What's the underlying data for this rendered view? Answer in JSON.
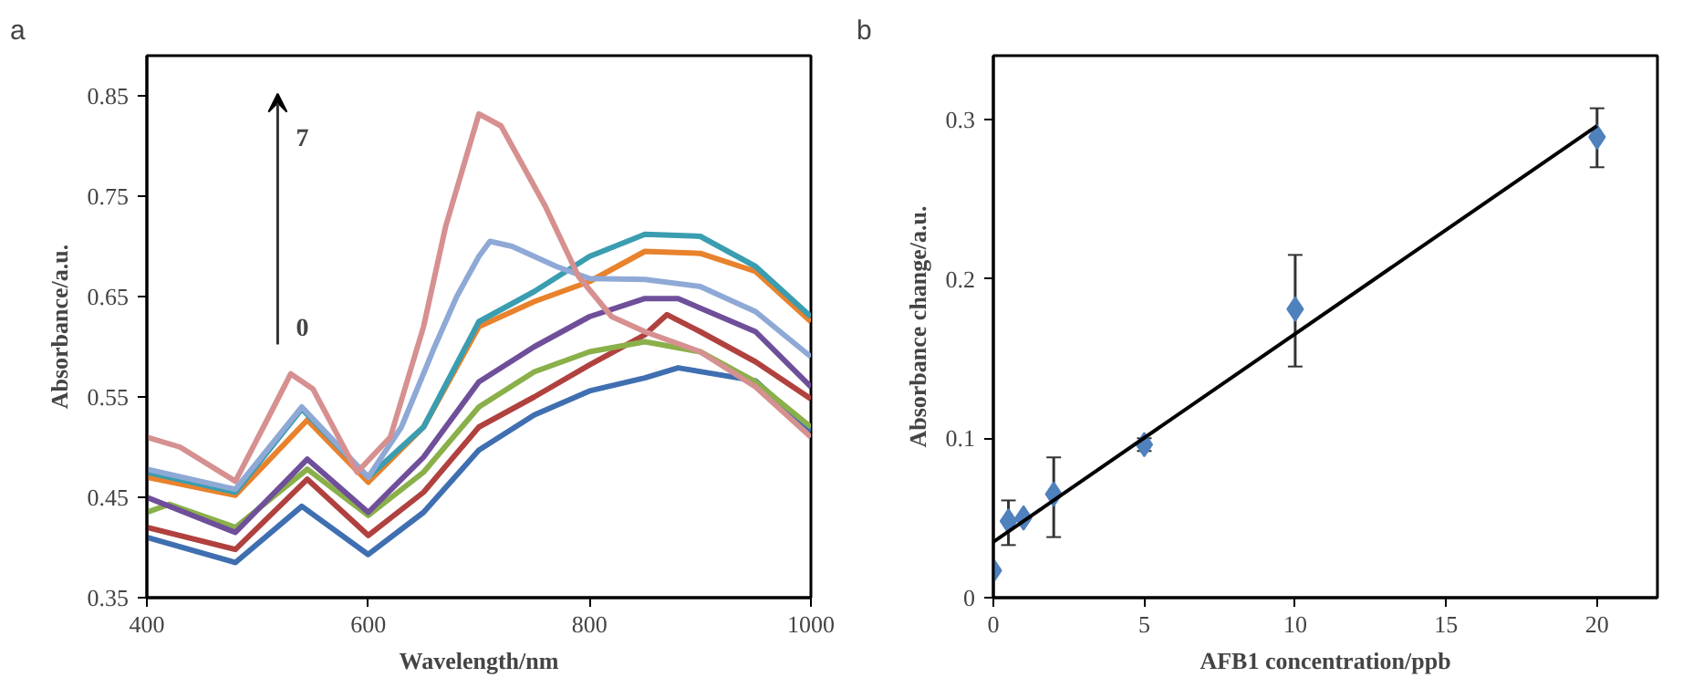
{
  "chart_data": [
    {
      "type": "line",
      "title": "a",
      "xlabel": "Wavelength/nm",
      "ylabel": "Absorbance/a.u.",
      "xlim": [
        400,
        1000
      ],
      "ylim": [
        0.35,
        0.89
      ],
      "xticks": [
        400,
        600,
        800,
        1000
      ],
      "yticks": [
        0.35,
        0.45,
        0.55,
        0.65,
        0.75,
        0.85
      ],
      "grid": false,
      "annotations": [
        "0",
        "7"
      ],
      "series": [
        {
          "color": "#3f6fb0",
          "x": [
            400,
            480,
            540,
            600,
            650,
            700,
            750,
            800,
            850,
            880,
            950,
            1000
          ],
          "values": [
            0.41,
            0.385,
            0.441,
            0.393,
            0.435,
            0.497,
            0.532,
            0.556,
            0.569,
            0.579,
            0.566,
            0.516
          ]
        },
        {
          "color": "#b0413e",
          "x": [
            400,
            480,
            545,
            600,
            650,
            700,
            750,
            800,
            850,
            870,
            900,
            950,
            1000
          ],
          "values": [
            0.42,
            0.398,
            0.468,
            0.412,
            0.455,
            0.52,
            0.55,
            0.582,
            0.612,
            0.632,
            0.615,
            0.585,
            0.548
          ]
        },
        {
          "color": "#8ab04a",
          "x": [
            400,
            420,
            480,
            545,
            600,
            650,
            700,
            750,
            800,
            850,
            900,
            950,
            1000
          ],
          "values": [
            0.435,
            0.443,
            0.42,
            0.478,
            0.432,
            0.475,
            0.54,
            0.575,
            0.595,
            0.605,
            0.595,
            0.565,
            0.52
          ]
        },
        {
          "color": "#6f4f9a",
          "x": [
            400,
            480,
            545,
            600,
            650,
            700,
            750,
            800,
            850,
            880,
            950,
            1000
          ],
          "values": [
            0.45,
            0.415,
            0.488,
            0.435,
            0.49,
            0.565,
            0.6,
            0.63,
            0.648,
            0.648,
            0.615,
            0.56
          ]
        },
        {
          "color": "#e8822c",
          "x": [
            400,
            480,
            545,
            600,
            650,
            700,
            750,
            800,
            850,
            900,
            950,
            1000
          ],
          "values": [
            0.47,
            0.452,
            0.527,
            0.465,
            0.52,
            0.62,
            0.645,
            0.665,
            0.695,
            0.693,
            0.675,
            0.625
          ]
        },
        {
          "color": "#3a9db0",
          "x": [
            400,
            480,
            540,
            600,
            650,
            700,
            750,
            800,
            850,
            900,
            950,
            1000
          ],
          "values": [
            0.475,
            0.455,
            0.538,
            0.47,
            0.52,
            0.625,
            0.655,
            0.69,
            0.712,
            0.71,
            0.68,
            0.63
          ]
        },
        {
          "color": "#8fa9d6",
          "x": [
            400,
            480,
            540,
            600,
            630,
            660,
            680,
            700,
            710,
            730,
            770,
            800,
            850,
            900,
            950,
            1000
          ],
          "values": [
            0.478,
            0.458,
            0.54,
            0.47,
            0.52,
            0.6,
            0.65,
            0.69,
            0.705,
            0.7,
            0.68,
            0.668,
            0.667,
            0.66,
            0.635,
            0.59
          ]
        },
        {
          "color": "#d69090",
          "x": [
            400,
            430,
            480,
            510,
            530,
            550,
            590,
            620,
            650,
            670,
            700,
            720,
            760,
            790,
            820,
            850,
            900,
            950,
            1000
          ],
          "values": [
            0.51,
            0.5,
            0.466,
            0.53,
            0.573,
            0.558,
            0.475,
            0.51,
            0.62,
            0.72,
            0.832,
            0.82,
            0.74,
            0.67,
            0.63,
            0.615,
            0.595,
            0.56,
            0.51
          ]
        }
      ]
    },
    {
      "type": "scatter",
      "title": "b",
      "xlabel": "AFB1 concentration/ppb",
      "ylabel": "Absorbance change/a.u.",
      "xlim": [
        0,
        22
      ],
      "ylim": [
        0,
        0.34
      ],
      "xticks": [
        0,
        5,
        10,
        15,
        20
      ],
      "yticks": [
        0,
        0.1,
        0.2,
        0.3
      ],
      "grid": false,
      "series": [
        {
          "color": "#4f81bd",
          "marker": "diamond",
          "x": [
            0,
            0.5,
            1,
            2,
            5,
            10,
            20
          ],
          "values": [
            0.017,
            0.048,
            0.05,
            0.065,
            0.096,
            0.181,
            0.289
          ],
          "errors": [
            null,
            [
              0.033,
              0.061
            ],
            null,
            [
              0.038,
              0.088
            ],
            [
              0.092,
              0.1
            ],
            [
              0.145,
              0.215
            ],
            [
              0.27,
              0.307
            ]
          ]
        },
        {
          "type": "line",
          "color": "#000000",
          "x": [
            0,
            20
          ],
          "values": [
            0.035,
            0.296
          ]
        }
      ]
    }
  ]
}
